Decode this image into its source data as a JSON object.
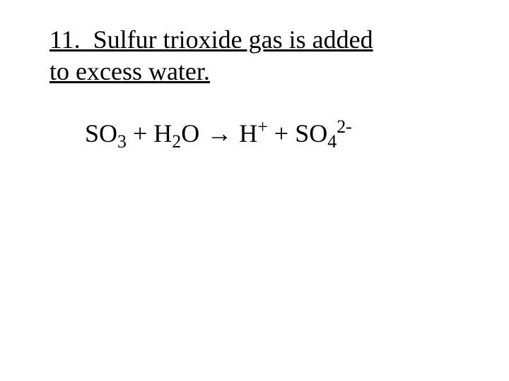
{
  "slide": {
    "background_color": "#ffffff",
    "text_color": "#000000",
    "font_family": "Times New Roman",
    "prompt": {
      "number": "11.",
      "line1_rest": "Sulfur trioxide gas is added",
      "line2": "to excess water.",
      "fontsize_pt": 27,
      "underline": true
    },
    "equation": {
      "fontsize_pt": 27,
      "parts": {
        "r1_base": "SO",
        "r1_sub": "3",
        "plus1": " + ",
        "r2_base": "H",
        "r2_sub": "2",
        "r2_tail": "O",
        "arrow": " → ",
        "p1_base": "H",
        "p1_sup": "+",
        "plus2": " + ",
        "p2_base": "SO",
        "p2_sub": "4",
        "p2_sup": "2-"
      }
    }
  }
}
